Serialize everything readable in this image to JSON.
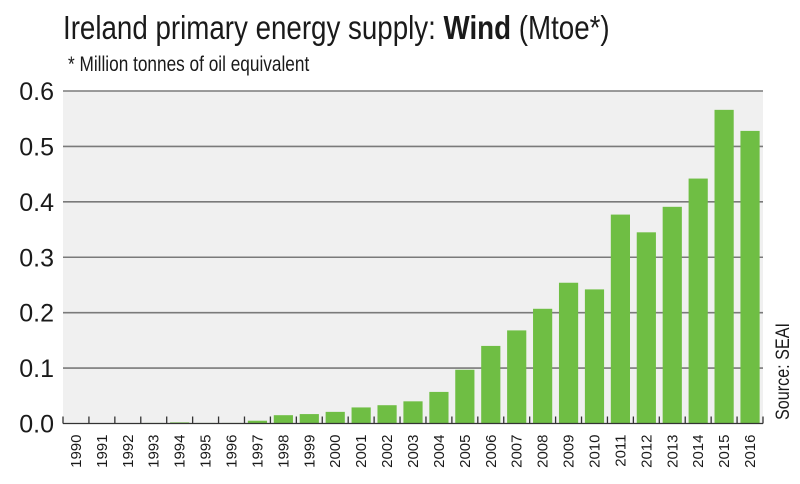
{
  "chart_data": {
    "type": "bar",
    "title_prefix": "Ireland primary energy supply: ",
    "title_bold": "Wind",
    "title_suffix": " (Mtoe*)",
    "subtitle": "* Million tonnes of oil equivalent",
    "source": "Source: SEAI",
    "xlabel": "",
    "ylabel": "",
    "ylim": [
      0,
      0.6
    ],
    "yticks": [
      0.0,
      0.1,
      0.2,
      0.3,
      0.4,
      0.5,
      0.6
    ],
    "ytick_labels": [
      "0.0",
      "0.1",
      "0.2",
      "0.3",
      "0.4",
      "0.5",
      "0.6"
    ],
    "grid": true,
    "legend": "none",
    "categories": [
      "1990",
      "1991",
      "1992",
      "1993",
      "1994",
      "1995",
      "1996",
      "1997",
      "1998",
      "1999",
      "2000",
      "2001",
      "2002",
      "2003",
      "2004",
      "2005",
      "2006",
      "2007",
      "2008",
      "2009",
      "2010",
      "2011",
      "2012",
      "2013",
      "2014",
      "2015",
      "2016"
    ],
    "values": [
      0.0,
      0.0,
      0.0,
      0.001,
      0.002,
      0.001,
      0.001,
      0.005,
      0.015,
      0.017,
      0.021,
      0.029,
      0.033,
      0.04,
      0.057,
      0.097,
      0.14,
      0.168,
      0.207,
      0.254,
      0.242,
      0.377,
      0.345,
      0.391,
      0.442,
      0.566,
      0.528
    ],
    "colors": {
      "bar": "#6fbe44",
      "plot_background": "#f0f0f0",
      "gridline": "#7a7a7a",
      "axis": "#333333",
      "text": "#1a1a1a"
    }
  }
}
